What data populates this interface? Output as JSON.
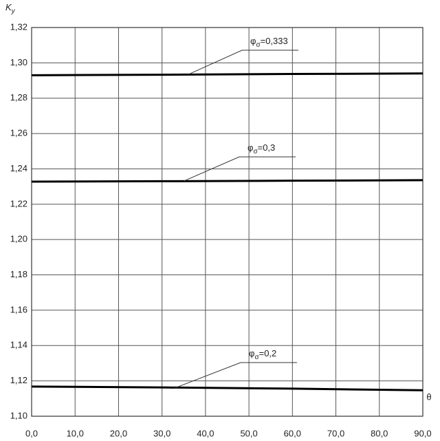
{
  "chart_data": {
    "type": "line",
    "y_label": "Ky",
    "x_label": "θ",
    "x": [
      0,
      30,
      60,
      90
    ],
    "series": [
      {
        "name": "φσ=0,333",
        "color": "#000000",
        "values": [
          1.293,
          1.2933,
          1.2937,
          1.294
        ]
      },
      {
        "name": "φσ=0,3",
        "color": "#000000",
        "values": [
          1.2328,
          1.233,
          1.2333,
          1.2336
        ]
      },
      {
        "name": "φσ=0,2",
        "color": "#000000",
        "values": [
          1.1168,
          1.1163,
          1.1156,
          1.1147
        ]
      }
    ],
    "xlim": [
      0,
      90
    ],
    "xticks": [
      {
        "value": 0,
        "label": "0,0"
      },
      {
        "value": 10,
        "label": "10,0"
      },
      {
        "value": 20,
        "label": "20,0"
      },
      {
        "value": 30,
        "label": "30,0"
      },
      {
        "value": 40,
        "label": "40,0"
      },
      {
        "value": 50,
        "label": "50,0"
      },
      {
        "value": 60,
        "label": "60,0"
      },
      {
        "value": 70,
        "label": "70,0"
      },
      {
        "value": 80,
        "label": "80,0"
      },
      {
        "value": 90,
        "label": "90,0"
      }
    ],
    "ylim": [
      1.1,
      1.32
    ],
    "yticks": [
      {
        "value": 1.1,
        "label": "1,10"
      },
      {
        "value": 1.12,
        "label": "1,12"
      },
      {
        "value": 1.14,
        "label": "1,14"
      },
      {
        "value": 1.16,
        "label": "1,16"
      },
      {
        "value": 1.18,
        "label": "1,18"
      },
      {
        "value": 1.2,
        "label": "1,20"
      },
      {
        "value": 1.22,
        "label": "1,22"
      },
      {
        "value": 1.24,
        "label": "1,24"
      },
      {
        "value": 1.26,
        "label": "1,26"
      },
      {
        "value": 1.28,
        "label": "1,28"
      },
      {
        "value": 1.3,
        "label": "1,30"
      },
      {
        "value": 1.32,
        "label": "1,32"
      }
    ],
    "grid": true
  }
}
